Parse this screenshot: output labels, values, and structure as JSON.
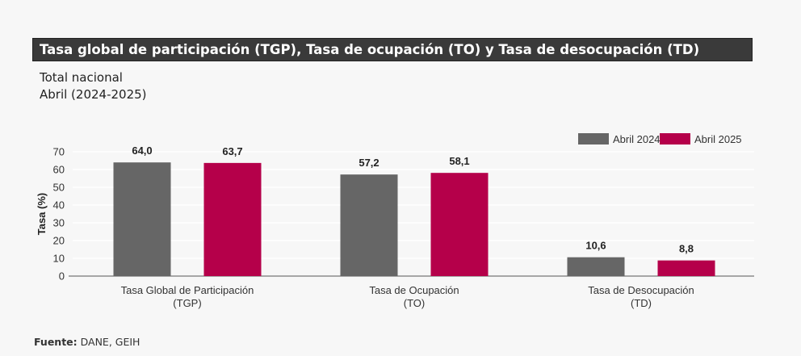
{
  "title": "Tasa global de participación (TGP), Tasa de ocupación (TO) y Tasa de desocupación (TD)",
  "subtitle_line1": "Total nacional",
  "subtitle_line2": "Abril (2024-2025)",
  "source_label": "Fuente:",
  "source_text": " DANE, GEIH",
  "chart_data": {
    "type": "bar",
    "categories": [
      [
        "Tasa Global de Participación",
        "(TGP)"
      ],
      [
        "Tasa de Ocupación",
        "(TO)"
      ],
      [
        "Tasa de Desocupación",
        "(TD)"
      ]
    ],
    "series": [
      {
        "name": "Abril 2024",
        "color": "#666666",
        "values": [
          64.0,
          57.2,
          10.6
        ],
        "labels": [
          "64,0",
          "57,2",
          "10,6"
        ]
      },
      {
        "name": "Abril 2025",
        "color": "#b5004a",
        "values": [
          63.7,
          58.1,
          8.8
        ],
        "labels": [
          "63,7",
          "58,1",
          "8,8"
        ]
      }
    ],
    "ylabel": "Tasa (%)",
    "ylim": [
      0,
      70
    ],
    "yticks": [
      0,
      10,
      20,
      30,
      40,
      50,
      60,
      70
    ],
    "grid": true,
    "legend": "top-right"
  }
}
